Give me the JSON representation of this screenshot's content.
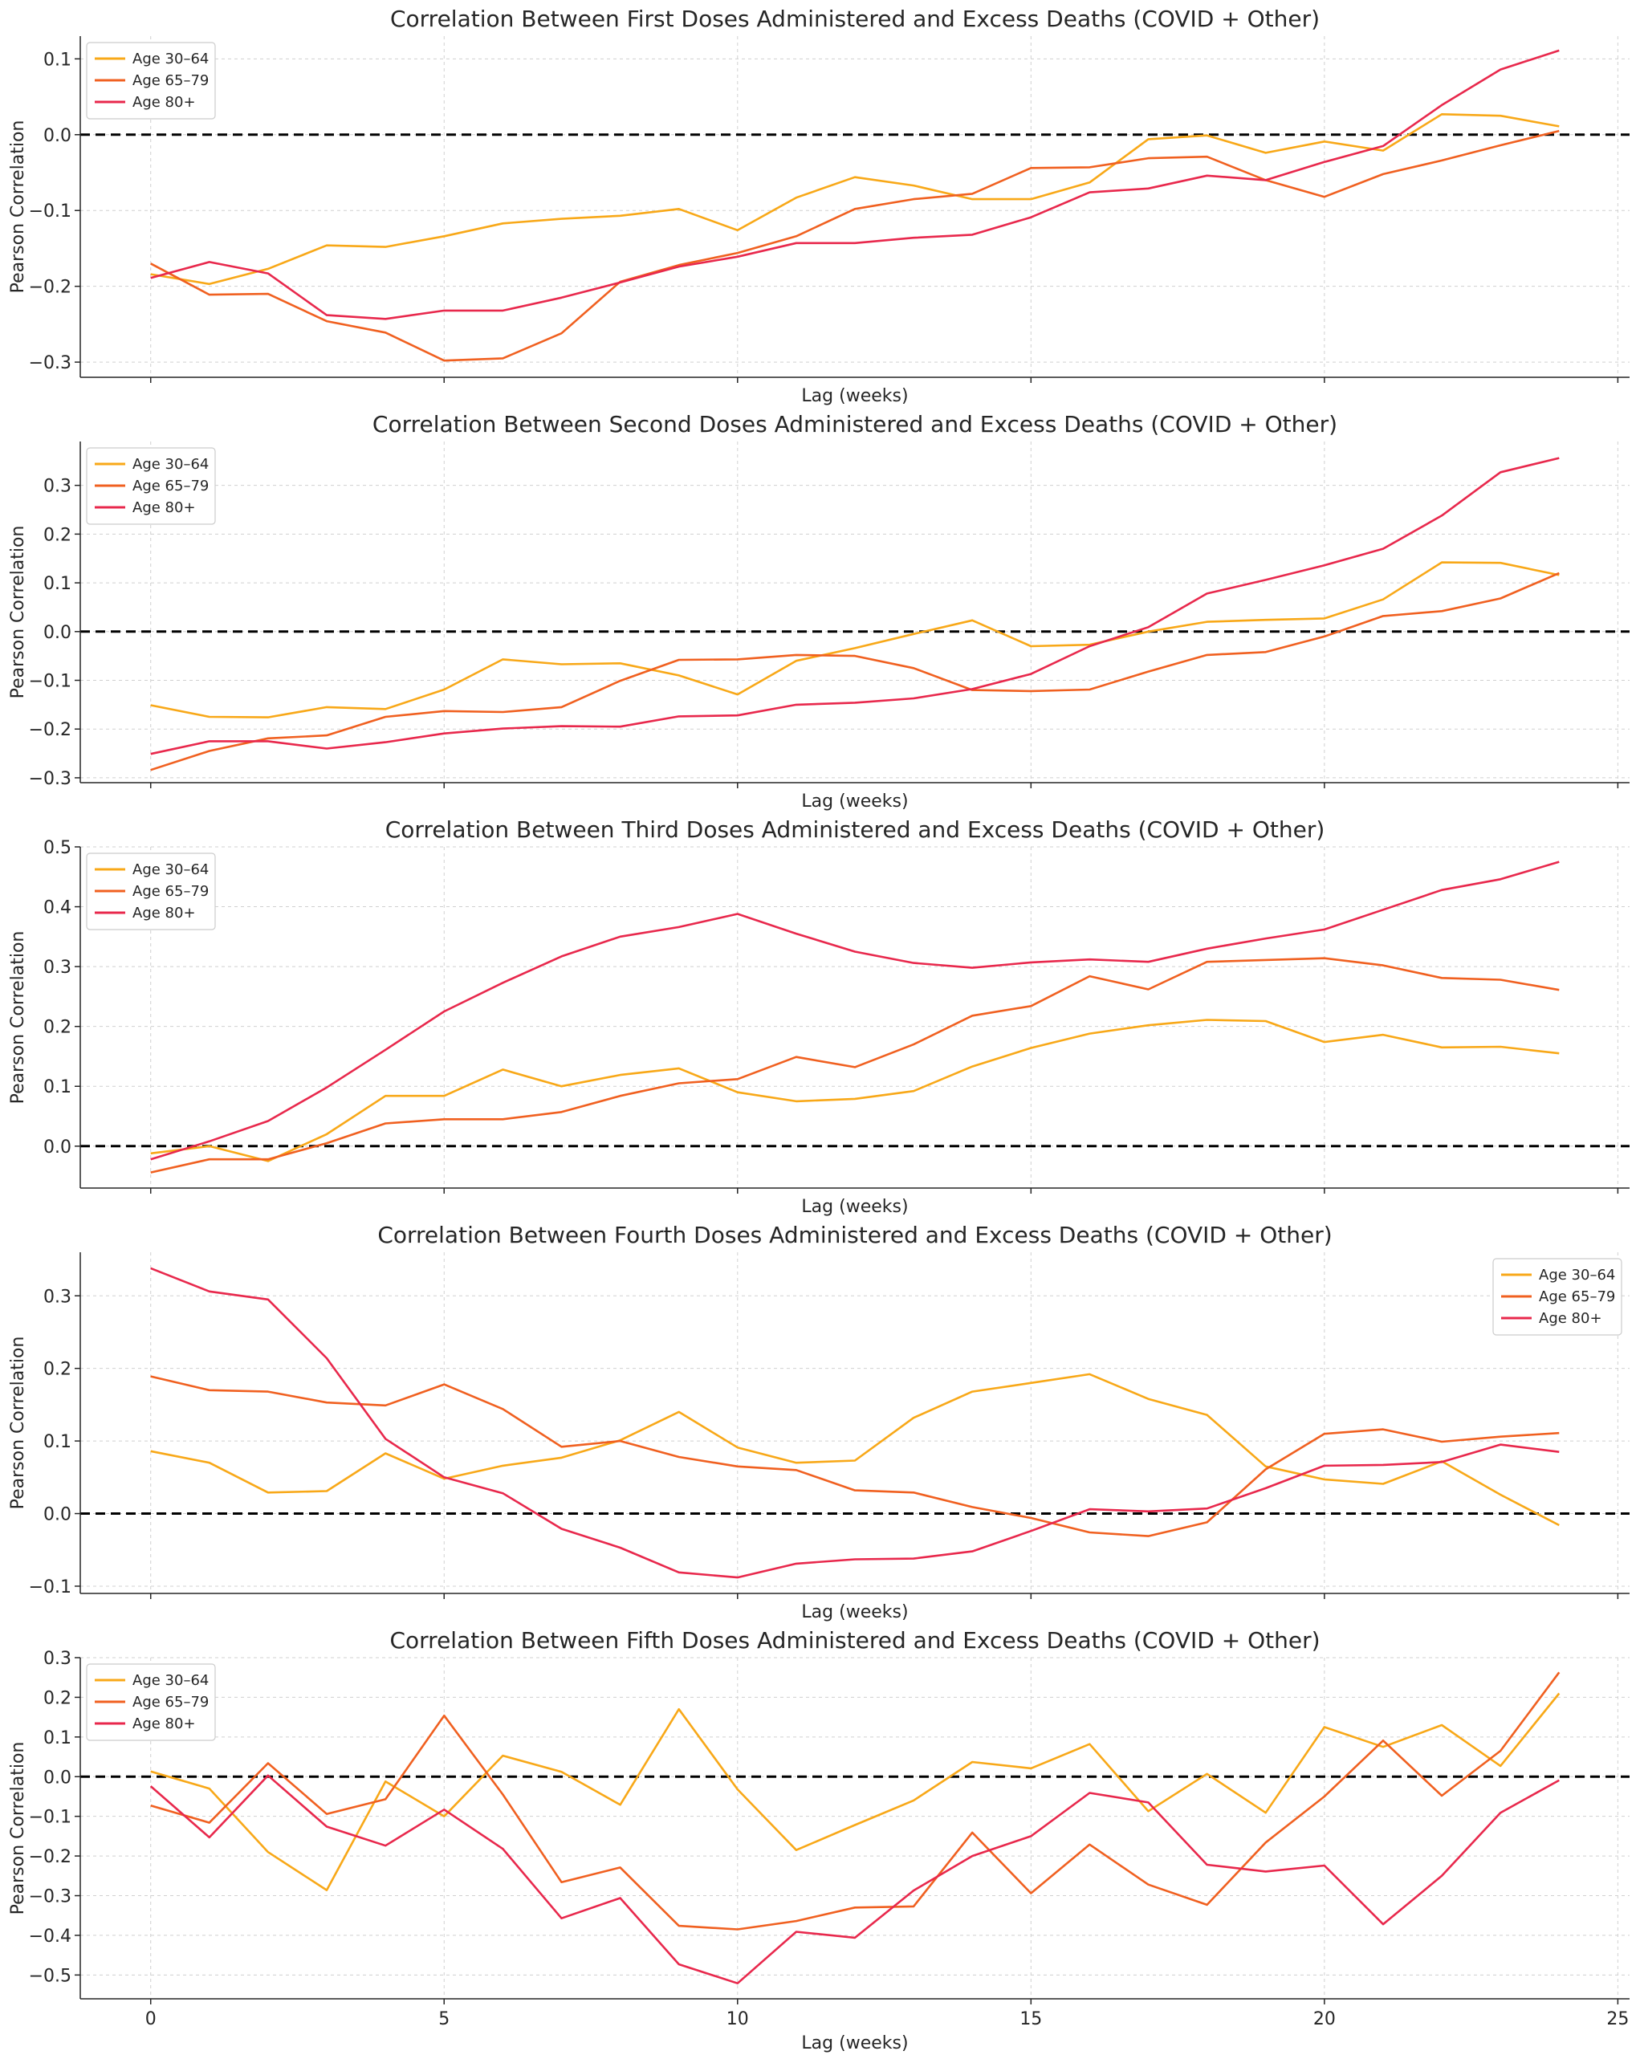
{
  "chart_data": [
    {
      "type": "line",
      "title": "Correlation Between First Doses Administered and Excess Deaths (COVID + Other)",
      "xlabel": "Lag (weeks)",
      "ylabel": "Pearson Correlation",
      "xlim": [
        -1.2,
        25.2
      ],
      "ylim": [
        -0.32,
        0.13
      ],
      "yticks": [
        -0.3,
        -0.2,
        -0.1,
        0.0,
        0.1
      ],
      "ytick_labels": [
        "−0.3",
        "−0.2",
        "−0.1",
        "0.0",
        "0.1"
      ],
      "xticks": [
        0,
        5,
        10,
        15,
        20,
        25
      ],
      "show_x_tick_labels": false,
      "grid": true,
      "legend_position": "upper-left",
      "x": [
        0,
        1,
        2,
        3,
        4,
        5,
        6,
        7,
        8,
        9,
        10,
        11,
        12,
        13,
        14,
        15,
        16,
        17,
        18,
        19,
        20,
        21,
        22,
        23,
        24
      ],
      "series": [
        {
          "name": "Age 30–64",
          "color": "#f8a818",
          "values": [
            -0.184,
            -0.197,
            -0.177,
            -0.146,
            -0.148,
            -0.134,
            -0.117,
            -0.111,
            -0.107,
            -0.098,
            -0.126,
            -0.083,
            -0.056,
            -0.067,
            -0.085,
            -0.085,
            -0.063,
            -0.006,
            -0.001,
            -0.024,
            -0.009,
            -0.021,
            0.027,
            0.025,
            0.011
          ]
        },
        {
          "name": "Age 65–79",
          "color": "#f06020",
          "values": [
            -0.17,
            -0.211,
            -0.21,
            -0.246,
            -0.261,
            -0.298,
            -0.295,
            -0.262,
            -0.194,
            -0.172,
            -0.156,
            -0.134,
            -0.098,
            -0.085,
            -0.078,
            -0.044,
            -0.043,
            -0.031,
            -0.029,
            -0.06,
            -0.082,
            -0.052,
            -0.034,
            -0.014,
            0.005
          ]
        },
        {
          "name": "Age 80+",
          "color": "#e8284c",
          "values": [
            -0.189,
            -0.168,
            -0.183,
            -0.238,
            -0.243,
            -0.232,
            -0.232,
            -0.215,
            -0.195,
            -0.174,
            -0.161,
            -0.143,
            -0.143,
            -0.136,
            -0.132,
            -0.109,
            -0.076,
            -0.071,
            -0.054,
            -0.06,
            -0.036,
            -0.015,
            0.039,
            0.086,
            0.111
          ]
        }
      ]
    },
    {
      "type": "line",
      "title": "Correlation Between Second Doses Administered and Excess Deaths (COVID + Other)",
      "xlabel": "Lag (weeks)",
      "ylabel": "Pearson Correlation",
      "xlim": [
        -1.2,
        25.2
      ],
      "ylim": [
        -0.31,
        0.39
      ],
      "yticks": [
        -0.3,
        -0.2,
        -0.1,
        0.0,
        0.1,
        0.2,
        0.3
      ],
      "ytick_labels": [
        "−0.3",
        "−0.2",
        "−0.1",
        "0.0",
        "0.1",
        "0.2",
        "0.3"
      ],
      "xticks": [
        0,
        5,
        10,
        15,
        20,
        25
      ],
      "show_x_tick_labels": false,
      "grid": true,
      "legend_position": "upper-left",
      "x": [
        0,
        1,
        2,
        3,
        4,
        5,
        6,
        7,
        8,
        9,
        10,
        11,
        12,
        13,
        14,
        15,
        16,
        17,
        18,
        19,
        20,
        21,
        22,
        23,
        24
      ],
      "series": [
        {
          "name": "Age 30–64",
          "color": "#f8a818",
          "values": [
            -0.151,
            -0.175,
            -0.176,
            -0.155,
            -0.159,
            -0.119,
            -0.057,
            -0.067,
            -0.065,
            -0.09,
            -0.129,
            -0.06,
            -0.034,
            -0.005,
            0.023,
            -0.03,
            -0.027,
            0.0,
            0.02,
            0.024,
            0.027,
            0.066,
            0.142,
            0.141,
            0.116
          ]
        },
        {
          "name": "Age 65–79",
          "color": "#f06020",
          "values": [
            -0.284,
            -0.245,
            -0.219,
            -0.213,
            -0.175,
            -0.163,
            -0.165,
            -0.155,
            -0.101,
            -0.058,
            -0.057,
            -0.048,
            -0.05,
            -0.075,
            -0.12,
            -0.122,
            -0.119,
            -0.082,
            -0.048,
            -0.042,
            -0.01,
            0.032,
            0.042,
            0.068,
            0.12
          ]
        },
        {
          "name": "Age 80+",
          "color": "#e8284c",
          "values": [
            -0.251,
            -0.225,
            -0.225,
            -0.24,
            -0.227,
            -0.209,
            -0.199,
            -0.194,
            -0.195,
            -0.174,
            -0.172,
            -0.15,
            -0.146,
            -0.137,
            -0.118,
            -0.087,
            -0.03,
            0.009,
            0.078,
            0.106,
            0.136,
            0.17,
            0.238,
            0.327,
            0.356
          ]
        }
      ]
    },
    {
      "type": "line",
      "title": "Correlation Between Third Doses Administered and Excess Deaths (COVID + Other)",
      "xlabel": "Lag (weeks)",
      "ylabel": "Pearson Correlation",
      "xlim": [
        -1.2,
        25.2
      ],
      "ylim": [
        -0.07,
        0.5
      ],
      "yticks": [
        0.0,
        0.1,
        0.2,
        0.3,
        0.4,
        0.5
      ],
      "ytick_labels": [
        "0.0",
        "0.1",
        "0.2",
        "0.3",
        "0.4",
        "0.5"
      ],
      "xticks": [
        0,
        5,
        10,
        15,
        20,
        25
      ],
      "show_x_tick_labels": false,
      "grid": true,
      "legend_position": "upper-left",
      "x": [
        0,
        1,
        2,
        3,
        4,
        5,
        6,
        7,
        8,
        9,
        10,
        11,
        12,
        13,
        14,
        15,
        16,
        17,
        18,
        19,
        20,
        21,
        22,
        23,
        24
      ],
      "series": [
        {
          "name": "Age 30–64",
          "color": "#f8a818",
          "values": [
            -0.012,
            0.0,
            -0.025,
            0.02,
            0.084,
            0.084,
            0.128,
            0.1,
            0.119,
            0.13,
            0.09,
            0.075,
            0.079,
            0.092,
            0.133,
            0.164,
            0.188,
            0.202,
            0.211,
            0.209,
            0.174,
            0.186,
            0.165,
            0.166,
            0.155
          ]
        },
        {
          "name": "Age 65–79",
          "color": "#f06020",
          "values": [
            -0.044,
            -0.022,
            -0.022,
            0.005,
            0.038,
            0.045,
            0.045,
            0.057,
            0.084,
            0.105,
            0.112,
            0.149,
            0.132,
            0.17,
            0.218,
            0.234,
            0.284,
            0.262,
            0.308,
            0.311,
            0.314,
            0.302,
            0.281,
            0.278,
            0.261
          ]
        },
        {
          "name": "Age 80+",
          "color": "#e8284c",
          "values": [
            -0.022,
            0.008,
            0.042,
            0.098,
            0.161,
            0.225,
            0.273,
            0.317,
            0.35,
            0.366,
            0.388,
            0.355,
            0.325,
            0.306,
            0.298,
            0.307,
            0.312,
            0.308,
            0.33,
            0.347,
            0.362,
            0.395,
            0.428,
            0.446,
            0.475
          ]
        }
      ]
    },
    {
      "type": "line",
      "title": "Correlation Between Fourth Doses Administered and Excess Deaths (COVID + Other)",
      "xlabel": "Lag (weeks)",
      "ylabel": "Pearson Correlation",
      "xlim": [
        -1.2,
        25.2
      ],
      "ylim": [
        -0.11,
        0.36
      ],
      "yticks": [
        -0.1,
        0.0,
        0.1,
        0.2,
        0.3
      ],
      "ytick_labels": [
        "−0.1",
        "0.0",
        "0.1",
        "0.2",
        "0.3"
      ],
      "xticks": [
        0,
        5,
        10,
        15,
        20,
        25
      ],
      "show_x_tick_labels": false,
      "grid": true,
      "legend_position": "upper-right",
      "x": [
        0,
        1,
        2,
        3,
        4,
        5,
        6,
        7,
        8,
        9,
        10,
        11,
        12,
        13,
        14,
        15,
        16,
        17,
        18,
        19,
        20,
        21,
        22,
        23,
        24
      ],
      "series": [
        {
          "name": "Age 30–64",
          "color": "#f8a818",
          "values": [
            0.086,
            0.07,
            0.029,
            0.031,
            0.083,
            0.048,
            0.066,
            0.077,
            0.101,
            0.14,
            0.091,
            0.07,
            0.073,
            0.132,
            0.168,
            0.18,
            0.192,
            0.158,
            0.136,
            0.065,
            0.047,
            0.041,
            0.072,
            0.026,
            -0.016
          ]
        },
        {
          "name": "Age 65–79",
          "color": "#f06020",
          "values": [
            0.189,
            0.17,
            0.168,
            0.153,
            0.149,
            0.178,
            0.144,
            0.092,
            0.1,
            0.078,
            0.065,
            0.06,
            0.032,
            0.029,
            0.009,
            -0.006,
            -0.026,
            -0.031,
            -0.012,
            0.061,
            0.11,
            0.116,
            0.099,
            0.106,
            0.111
          ]
        },
        {
          "name": "Age 80+",
          "color": "#e8284c",
          "values": [
            0.338,
            0.306,
            0.295,
            0.214,
            0.103,
            0.05,
            0.028,
            -0.021,
            -0.047,
            -0.081,
            -0.088,
            -0.069,
            -0.063,
            -0.062,
            -0.052,
            -0.024,
            0.006,
            0.003,
            0.007,
            0.035,
            0.066,
            0.067,
            0.071,
            0.095,
            0.085
          ]
        }
      ]
    },
    {
      "type": "line",
      "title": "Correlation Between Fifth Doses Administered and Excess Deaths (COVID + Other)",
      "xlabel": "Lag (weeks)",
      "ylabel": "Pearson Correlation",
      "xlim": [
        -1.2,
        25.2
      ],
      "ylim": [
        -0.56,
        0.3
      ],
      "yticks": [
        -0.5,
        -0.4,
        -0.3,
        -0.2,
        -0.1,
        0.0,
        0.1,
        0.2,
        0.3
      ],
      "ytick_labels": [
        "−0.5",
        "−0.4",
        "−0.3",
        "−0.2",
        "−0.1",
        "0.0",
        "0.1",
        "0.2",
        "0.3"
      ],
      "xticks": [
        0,
        5,
        10,
        15,
        20,
        25
      ],
      "show_x_tick_labels": true,
      "grid": true,
      "legend_position": "upper-left",
      "x": [
        0,
        1,
        2,
        3,
        4,
        5,
        6,
        7,
        8,
        9,
        10,
        11,
        12,
        13,
        14,
        15,
        16,
        17,
        18,
        19,
        20,
        21,
        22,
        23,
        24
      ],
      "series": [
        {
          "name": "Age 30–64",
          "color": "#f8a818",
          "values": [
            0.013,
            -0.03,
            -0.19,
            -0.286,
            -0.012,
            -0.1,
            0.053,
            0.012,
            -0.071,
            0.17,
            -0.032,
            -0.185,
            -0.122,
            -0.06,
            0.037,
            0.021,
            0.082,
            -0.087,
            0.007,
            -0.091,
            0.125,
            0.075,
            0.13,
            0.027,
            0.21
          ]
        },
        {
          "name": "Age 65–79",
          "color": "#f06020",
          "values": [
            -0.073,
            -0.116,
            0.034,
            -0.094,
            -0.057,
            0.154,
            -0.045,
            -0.266,
            -0.229,
            -0.376,
            -0.385,
            -0.364,
            -0.33,
            -0.327,
            -0.141,
            -0.294,
            -0.171,
            -0.272,
            -0.323,
            -0.166,
            -0.05,
            0.091,
            -0.048,
            0.065,
            0.263
          ]
        },
        {
          "name": "Age 80+",
          "color": "#e8284c",
          "values": [
            -0.024,
            -0.153,
            0.003,
            -0.126,
            -0.174,
            -0.083,
            -0.182,
            -0.357,
            -0.306,
            -0.473,
            -0.521,
            -0.391,
            -0.406,
            -0.287,
            -0.2,
            -0.15,
            -0.041,
            -0.065,
            -0.222,
            -0.239,
            -0.224,
            -0.372,
            -0.25,
            -0.091,
            -0.009
          ]
        }
      ]
    }
  ]
}
